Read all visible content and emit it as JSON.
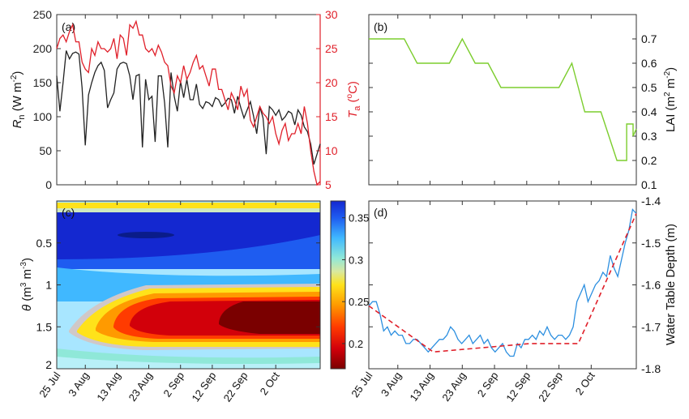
{
  "x_tick_labels": [
    "25 Jul",
    "3 Aug",
    "13 Aug",
    "23 Aug",
    "2 Sep",
    "12 Sep",
    "22 Sep",
    "2 Oct"
  ],
  "chart_data": [
    {
      "panel": "(a)",
      "type": "line",
      "xlim": [
        0,
        83
      ],
      "left_axis": {
        "label": "R",
        "label_sub": "n",
        "label_unit": " (W m",
        "label_sup": "-2",
        "label_close": ")",
        "ylim": [
          0,
          250
        ],
        "ticks": [
          0,
          50,
          100,
          150,
          200,
          250
        ],
        "color": "#222222"
      },
      "right_axis": {
        "label": "T",
        "label_sub": "a",
        "label_unit": " (",
        "label_sup": "o",
        "label_close": "C)",
        "ylim": [
          5,
          30
        ],
        "ticks": [
          5,
          10,
          15,
          20,
          25,
          30
        ],
        "color": "#e0202a"
      },
      "series": [
        {
          "name": "Rn",
          "axis": "left",
          "color": "#222222",
          "values": [
            160,
            108,
            150,
            197,
            185,
            193,
            195,
            192,
            142,
            58,
            132,
            150,
            165,
            175,
            180,
            168,
            113,
            125,
            135,
            170,
            178,
            180,
            178,
            160,
            125,
            160,
            162,
            55,
            155,
            125,
            130,
            63,
            160,
            160,
            120,
            55,
            165,
            130,
            108,
            152,
            128,
            155,
            125,
            125,
            148,
            118,
            112,
            122,
            120,
            115,
            128,
            125,
            115,
            120,
            127,
            125,
            105,
            130,
            113,
            98,
            110,
            122,
            101,
            75,
            115,
            98,
            45,
            115,
            110,
            102,
            110,
            95,
            100,
            108,
            105,
            88,
            110,
            102,
            85,
            78,
            60,
            30,
            45,
            60
          ]
        },
        {
          "name": "Ta",
          "axis": "right",
          "color": "#e0202a",
          "values": [
            25,
            26.5,
            27,
            26,
            27.5,
            28.5,
            26,
            26,
            23,
            22,
            21.5,
            25,
            24,
            26,
            25,
            25,
            24.5,
            25,
            26.5,
            23.5,
            27,
            26.5,
            24,
            28.5,
            28,
            29,
            27,
            27,
            25,
            24.5,
            25,
            24,
            25.5,
            24.5,
            23,
            22.5,
            19.5,
            18.5,
            21,
            20,
            22.5,
            20.5,
            21.5,
            23,
            24,
            22,
            22.5,
            21,
            19.5,
            22,
            22,
            19,
            19,
            17.5,
            16,
            18.5,
            17.5,
            16,
            19.5,
            18,
            19,
            14.5,
            13.5,
            15,
            16.5,
            15.5,
            15,
            14,
            15,
            12.5,
            11,
            13,
            14,
            11.5,
            12.5,
            12.5,
            14,
            12.5,
            16.5,
            14,
            10,
            7,
            5,
            5.5
          ]
        }
      ]
    },
    {
      "panel": "(b)",
      "type": "line",
      "xlim": [
        0,
        83
      ],
      "right_axis": {
        "label": "LAI (m",
        "label_sup1": "2",
        "label_mid": " m",
        "label_sup2": "-2",
        "label_close": ")",
        "ylim": [
          0.1,
          0.8
        ],
        "ticks": [
          0.1,
          0.2,
          0.3,
          0.4,
          0.5,
          0.6,
          0.7
        ],
        "color": "#222222"
      },
      "series": [
        {
          "name": "LAI",
          "color": "#7ccd2e",
          "x": [
            0,
            11,
            15,
            25,
            29,
            33,
            37,
            41,
            47,
            52,
            59,
            63,
            67,
            72,
            77,
            77,
            80,
            80,
            82,
            82,
            83
          ],
          "values": [
            0.7,
            0.7,
            0.6,
            0.6,
            0.7,
            0.6,
            0.6,
            0.5,
            0.5,
            0.5,
            0.5,
            0.6,
            0.4,
            0.4,
            0.2,
            0.2,
            0.2,
            0.35,
            0.35,
            0.3,
            0.33
          ]
        }
      ]
    },
    {
      "panel": "(c)",
      "type": "heatmap",
      "xlim": [
        0,
        83
      ],
      "ylabel": "θ (m³ m⁻³)",
      "ylabel_theta": "θ",
      "ylabel_open": " (m",
      "ylabel_sup1": "3",
      "ylabel_mid": " m",
      "ylabel_sup2": "-3",
      "ylabel_close": ")",
      "y_axis": {
        "ylim": [
          0,
          2
        ],
        "ticks": [
          0.5,
          1,
          1.5,
          2
        ],
        "tick_labels": [
          "0.5",
          "1",
          "1.5",
          "2"
        ],
        "reversed": true
      },
      "colorbar": {
        "ticks": [
          0.2,
          0.25,
          0.3,
          0.35
        ],
        "tick_labels": [
          "0.2",
          "0.25",
          "0.3",
          "0.35"
        ],
        "range": [
          0.17,
          0.37
        ]
      }
    },
    {
      "panel": "(d)",
      "type": "line",
      "xlim": [
        0,
        83
      ],
      "right_axis": {
        "label": "Water Table Depth (m)",
        "ylim": [
          -1.8,
          -1.4
        ],
        "ticks": [
          -1.8,
          -1.7,
          -1.6,
          -1.5,
          -1.4
        ],
        "tick_labels": [
          "-1.8",
          "-1.7",
          "-1.6",
          "-1.5",
          "-1.4"
        ],
        "color": "#222222"
      },
      "series": [
        {
          "name": "Water table depth",
          "color": "#2c8fe0",
          "values": [
            -1.65,
            -1.64,
            -1.64,
            -1.67,
            -1.71,
            -1.7,
            -1.72,
            -1.71,
            -1.72,
            -1.72,
            -1.74,
            -1.74,
            -1.73,
            -1.73,
            -1.74,
            -1.75,
            -1.76,
            -1.75,
            -1.74,
            -1.73,
            -1.73,
            -1.72,
            -1.7,
            -1.71,
            -1.73,
            -1.74,
            -1.73,
            -1.72,
            -1.74,
            -1.73,
            -1.72,
            -1.74,
            -1.73,
            -1.75,
            -1.76,
            -1.75,
            -1.74,
            -1.76,
            -1.77,
            -1.77,
            -1.74,
            -1.75,
            -1.73,
            -1.73,
            -1.72,
            -1.73,
            -1.71,
            -1.72,
            -1.7,
            -1.72,
            -1.73,
            -1.72,
            -1.72,
            -1.73,
            -1.72,
            -1.7,
            -1.64,
            -1.62,
            -1.6,
            -1.64,
            -1.62,
            -1.6,
            -1.59,
            -1.57,
            -1.58,
            -1.53,
            -1.56,
            -1.58,
            -1.54,
            -1.5,
            -1.47,
            -1.42,
            -1.43
          ]
        },
        {
          "name": "Trend",
          "color": "#e0202a",
          "dashed": true,
          "x": [
            0,
            20,
            50,
            65,
            83
          ],
          "values": [
            -1.65,
            -1.76,
            -1.74,
            -1.74,
            -1.43
          ]
        }
      ]
    }
  ]
}
